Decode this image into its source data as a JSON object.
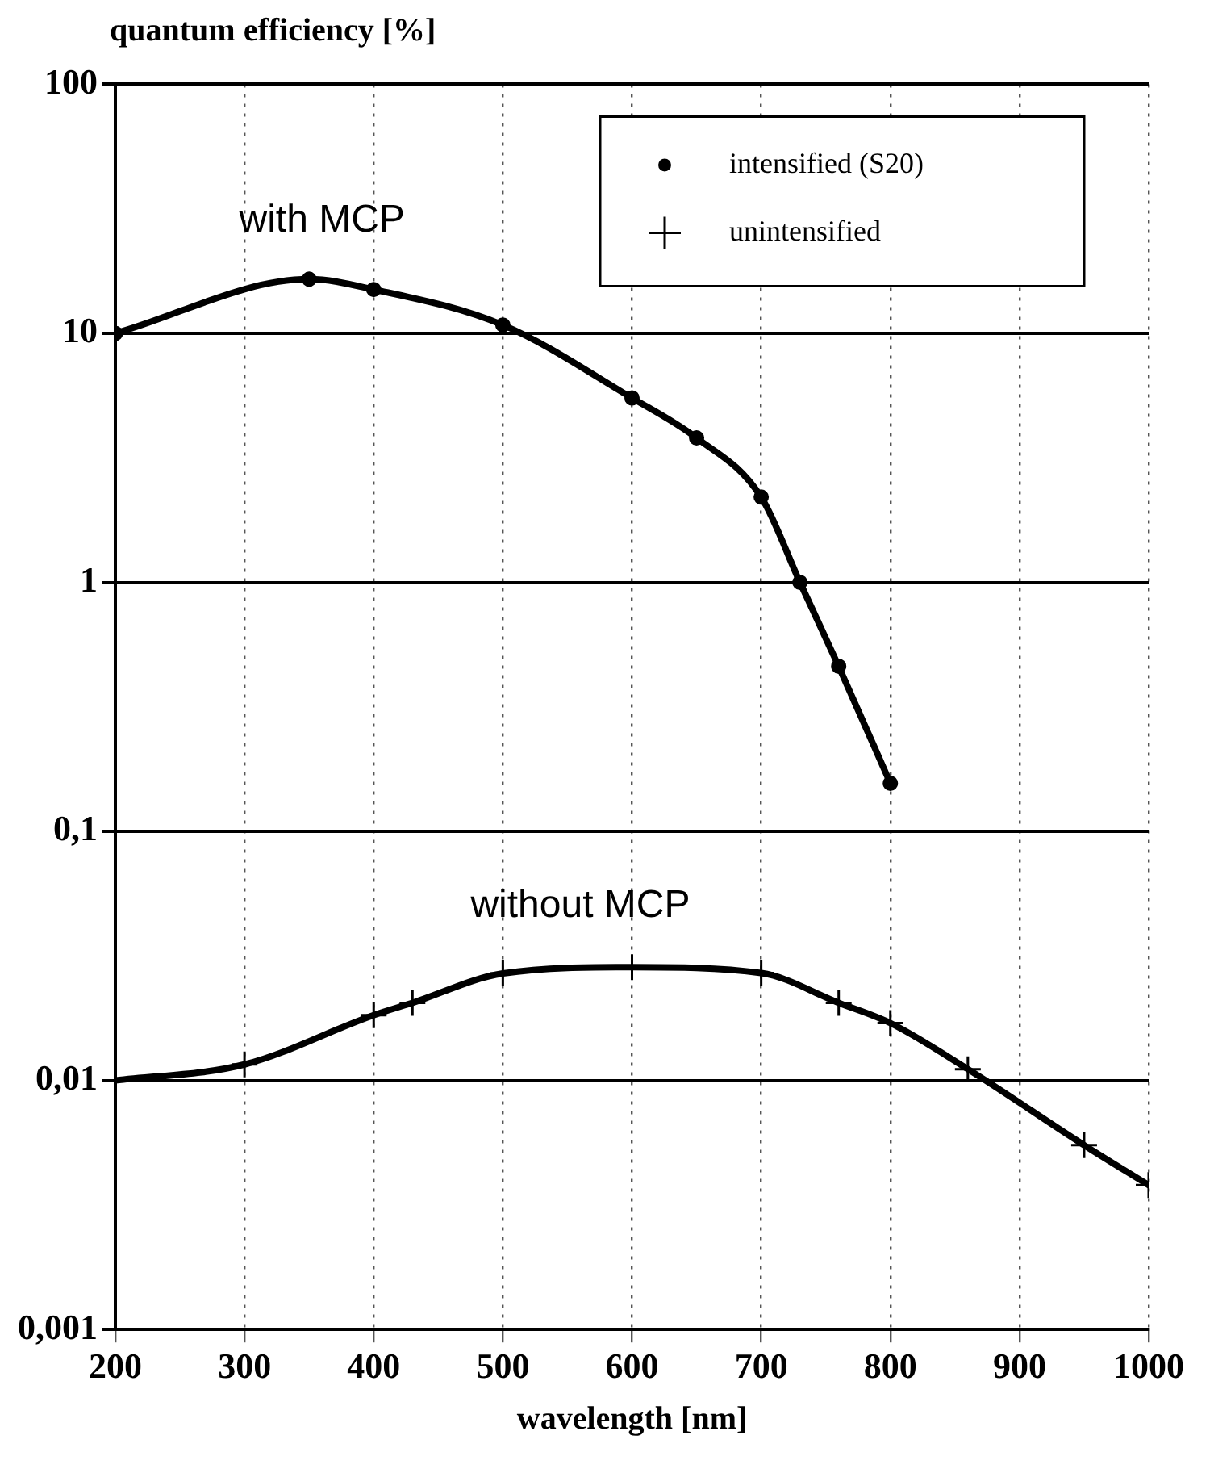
{
  "chart_data": {
    "type": "line",
    "ylabel": "quantum efficiency [%]",
    "xlabel": "wavelength [nm]",
    "series": [
      {
        "name": "intensified (S20)",
        "color": "#000000",
        "marker": "circle",
        "x": [
          200,
          350,
          400,
          500,
          600,
          650,
          700,
          730,
          760,
          800
        ],
        "values": [
          10,
          16.5,
          15,
          10.8,
          5.5,
          3.8,
          2.2,
          1,
          0.46,
          0.156
        ]
      },
      {
        "name": "unintensified",
        "color": "#000000",
        "marker": "cross",
        "x": [
          200,
          300,
          400,
          430,
          500,
          600,
          700,
          760,
          800,
          860,
          950,
          1000
        ],
        "values": [
          0.01,
          0.0116,
          0.0183,
          0.0205,
          0.0269,
          0.0285,
          0.027,
          0.0205,
          0.017,
          0.0111,
          0.0055,
          0.0038
        ]
      }
    ],
    "xlim": [
      200,
      1000
    ],
    "xticks": [
      200,
      300,
      400,
      500,
      600,
      700,
      800,
      900,
      1000
    ],
    "ylim": [
      0.001,
      100
    ],
    "yticks": [
      {
        "value": 0.001,
        "label": "0,001"
      },
      {
        "value": 0.01,
        "label": "0,01"
      },
      {
        "value": 0.1,
        "label": "0,1"
      },
      1,
      10,
      100
    ],
    "log": "y",
    "grid": true,
    "legend": "top right",
    "line_style": "solid",
    "annotations": [
      "with MCP",
      "without MCP"
    ]
  }
}
